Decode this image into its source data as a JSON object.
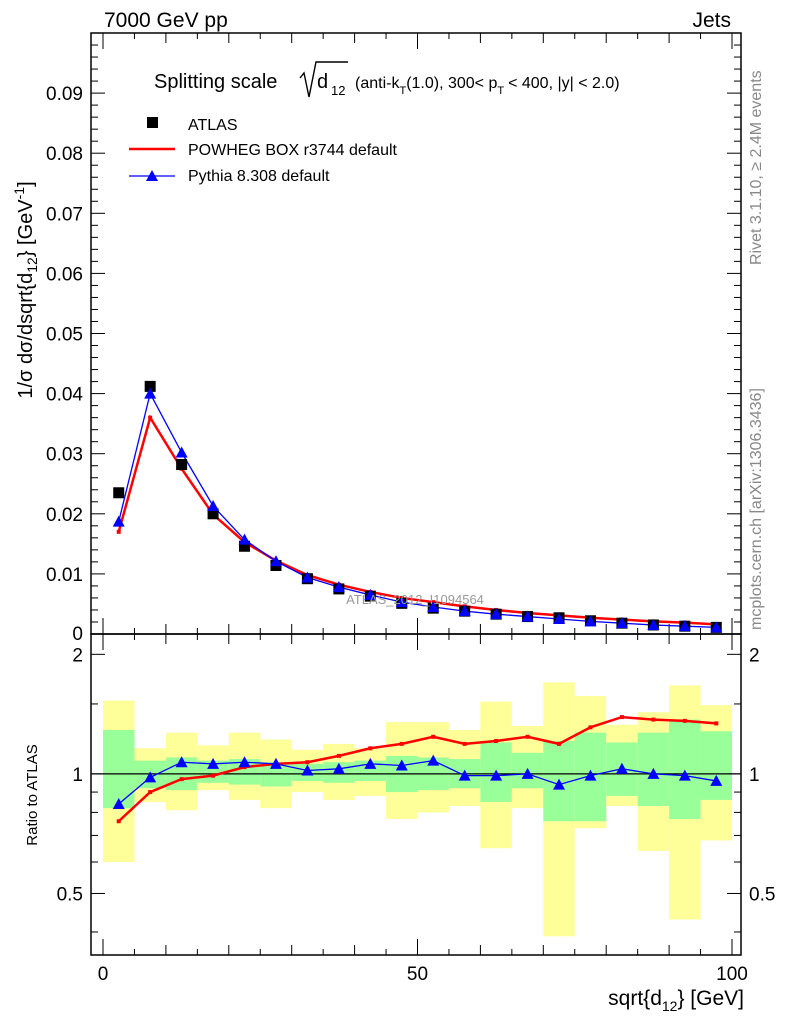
{
  "header": {
    "left": "7000 GeV pp",
    "right": "Jets"
  },
  "side_labels": {
    "rivet": "Rivet 3.1.10, ≥ 2.4M events",
    "mcplots": "mcplots.cern.ch [arXiv:1306.3436]"
  },
  "watermark": "ATLAS_2012_I1094564",
  "colors": {
    "atlas": "#000000",
    "powheg": "#ff0000",
    "pythia": "#0000ff",
    "band_outer": "#ffff99",
    "band_inner": "#99ff99"
  },
  "chart_data": [
    {
      "type": "scatter",
      "id": "main",
      "title": "Splitting scale",
      "title_sqrt_symbol": "d",
      "title_sqrt_sub": "12",
      "title_details": "(anti-k_T(1.0), 300< p_T < 400, |y| < 2.0)",
      "title_parts": {
        "a": "(anti-k",
        "a_sub": "T",
        "b": "(1.0), 300< p",
        "b_sub": "T",
        "c": "< 400, |y| < 2.0)"
      },
      "ylabel": "1/σ dσ/dsqrt{d_12} [GeV^-1]",
      "ylabel_parts": {
        "a": "1/σ dσ/dsqrt{d",
        "sub": "12",
        "b": "} [GeV",
        "sup": "-1",
        "c": "]"
      },
      "xlim": [
        0,
        100
      ],
      "ylim": [
        0,
        0.1
      ],
      "y_ticks": [
        "0.01",
        "0.02",
        "0.03",
        "0.04",
        "0.05",
        "0.06",
        "0.07",
        "0.08",
        "0.09"
      ],
      "y_zero_label": "0",
      "legend": [
        {
          "name": "ATLAS",
          "marker": "square"
        },
        {
          "name": "POWHEG BOX r3744 default",
          "marker": "line"
        },
        {
          "name": "Pythia 8.308 default",
          "marker": "triangle"
        }
      ],
      "x": [
        2.5,
        7.5,
        12.5,
        17.5,
        22.5,
        27.5,
        32.5,
        37.5,
        42.5,
        47.5,
        52.5,
        57.5,
        62.5,
        67.5,
        72.5,
        77.5,
        82.5,
        87.5,
        92.5,
        97.5
      ],
      "series": [
        {
          "name": "ATLAS",
          "values": [
            0.0235,
            0.0412,
            0.0282,
            0.02,
            0.0146,
            0.0114,
            0.0092,
            0.0075,
            0.0063,
            0.0051,
            0.0043,
            0.0038,
            0.0033,
            0.0029,
            0.0027,
            0.0022,
            0.0018,
            0.0015,
            0.0013,
            0.0011
          ]
        },
        {
          "name": "POWHEG BOX r3744 default",
          "values": [
            0.017,
            0.036,
            0.0275,
            0.0199,
            0.0153,
            0.0122,
            0.0098,
            0.0082,
            0.007,
            0.006,
            0.0053,
            0.0046,
            0.004,
            0.0035,
            0.0031,
            0.0027,
            0.0024,
            0.0021,
            0.0019,
            0.0016
          ]
        },
        {
          "name": "Pythia 8.308 default",
          "values": [
            0.0187,
            0.04,
            0.0302,
            0.0213,
            0.0157,
            0.0121,
            0.0094,
            0.0078,
            0.0065,
            0.0053,
            0.0045,
            0.0038,
            0.0033,
            0.0029,
            0.0025,
            0.0021,
            0.0018,
            0.0015,
            0.0013,
            0.0011
          ]
        }
      ]
    },
    {
      "type": "scatter",
      "id": "ratio",
      "ylabel": "Ratio to ATLAS",
      "xlabel": "sqrt{d_12} [GeV]",
      "xlabel_parts": {
        "a": "sqrt{d",
        "sub": "12",
        "b": "} [GeV]"
      },
      "xlim": [
        0,
        100
      ],
      "ylim": [
        0.35,
        2.25
      ],
      "x_ticks": [
        "0",
        "50",
        "100"
      ],
      "y_ticks": [
        "0.5",
        "1",
        "2"
      ],
      "x": [
        2.5,
        7.5,
        12.5,
        17.5,
        22.5,
        27.5,
        32.5,
        37.5,
        42.5,
        47.5,
        52.5,
        57.5,
        62.5,
        67.5,
        72.5,
        77.5,
        82.5,
        87.5,
        92.5,
        97.5
      ],
      "bands": {
        "inner_low": [
          0.82,
          0.92,
          0.91,
          0.95,
          0.94,
          0.93,
          0.96,
          0.95,
          0.96,
          0.9,
          0.91,
          0.92,
          0.85,
          0.92,
          0.76,
          0.76,
          0.88,
          0.83,
          0.77,
          0.86
        ],
        "inner_high": [
          1.29,
          1.08,
          1.1,
          1.08,
          1.09,
          1.07,
          1.06,
          1.07,
          1.08,
          1.11,
          1.1,
          1.09,
          1.2,
          1.13,
          1.21,
          1.27,
          1.2,
          1.27,
          1.37,
          1.28
        ],
        "outer_low": [
          0.6,
          0.85,
          0.81,
          0.91,
          0.86,
          0.82,
          0.9,
          0.86,
          0.88,
          0.77,
          0.8,
          0.83,
          0.65,
          0.82,
          0.39,
          0.73,
          0.83,
          0.64,
          0.43,
          0.68
        ],
        "outer_high": [
          1.53,
          1.16,
          1.27,
          1.18,
          1.27,
          1.22,
          1.15,
          1.19,
          1.16,
          1.35,
          1.35,
          1.29,
          1.52,
          1.32,
          1.7,
          1.57,
          1.33,
          1.43,
          1.67,
          1.49
        ]
      },
      "series": [
        {
          "name": "POWHEG BOX r3744 default",
          "values": [
            0.76,
            0.9,
            0.97,
            0.99,
            1.04,
            1.06,
            1.07,
            1.11,
            1.16,
            1.19,
            1.24,
            1.19,
            1.21,
            1.24,
            1.19,
            1.31,
            1.39,
            1.37,
            1.36,
            1.34
          ]
        },
        {
          "name": "Pythia 8.308 default",
          "values": [
            0.84,
            0.98,
            1.07,
            1.06,
            1.07,
            1.06,
            1.02,
            1.03,
            1.06,
            1.05,
            1.08,
            0.99,
            0.99,
            1.0,
            0.94,
            0.99,
            1.03,
            1.0,
            0.99,
            0.96
          ]
        }
      ]
    }
  ]
}
